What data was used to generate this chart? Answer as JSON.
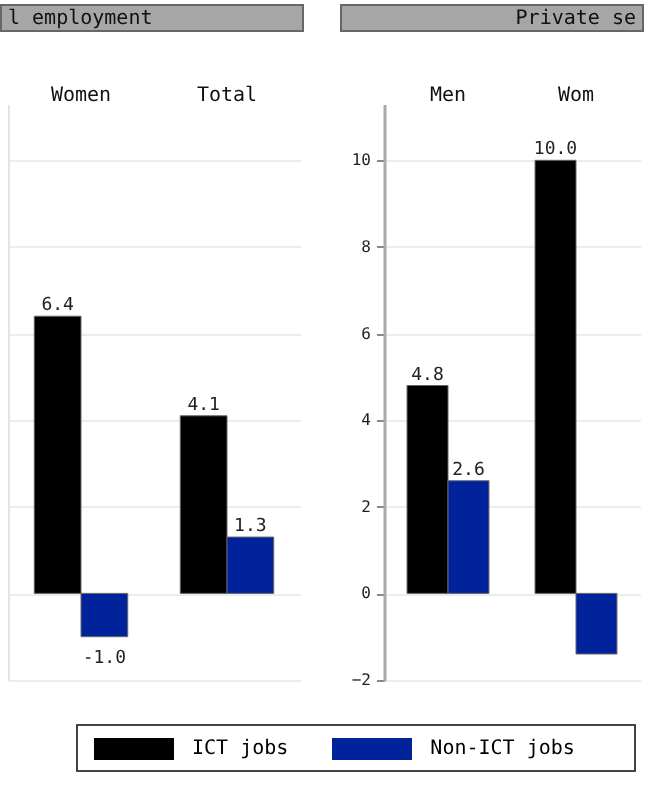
{
  "chart_data": [
    {
      "type": "bar",
      "title": "l employment",
      "categories": [
        "Women",
        "Total"
      ],
      "series": [
        {
          "name": "ICT jobs",
          "color": "#000000",
          "values": [
            6.4,
            4.1
          ],
          "value_labels": [
            "6.4",
            "4.1"
          ]
        },
        {
          "name": "Non-ICT jobs",
          "color": "#00239c",
          "values": [
            -1.0,
            1.3
          ],
          "value_labels": [
            "-1.0",
            "1.3"
          ]
        }
      ],
      "ylim": [
        -2,
        11.3
      ],
      "yticks": [
        -2,
        0,
        2,
        4,
        6,
        8,
        10
      ],
      "grid": "y",
      "tick_labels": "x",
      "legend": "bottom"
    },
    {
      "type": "bar",
      "title": "Private se",
      "categories": [
        "Men",
        "Wom"
      ],
      "series": [
        {
          "color": "#000000",
          "values": [
            4.8,
            10.0
          ],
          "value_labels": [
            "4.8",
            "10.0"
          ]
        },
        {
          "color": "#00239c",
          "values": [
            2.6,
            -1.4
          ],
          "value_labels": [
            "2.6",
            null
          ]
        }
      ],
      "ylim": [
        -2,
        11.3
      ],
      "yticks": [
        -2,
        0,
        2,
        4,
        6,
        8,
        10
      ],
      "grid": "y"
    }
  ]
}
